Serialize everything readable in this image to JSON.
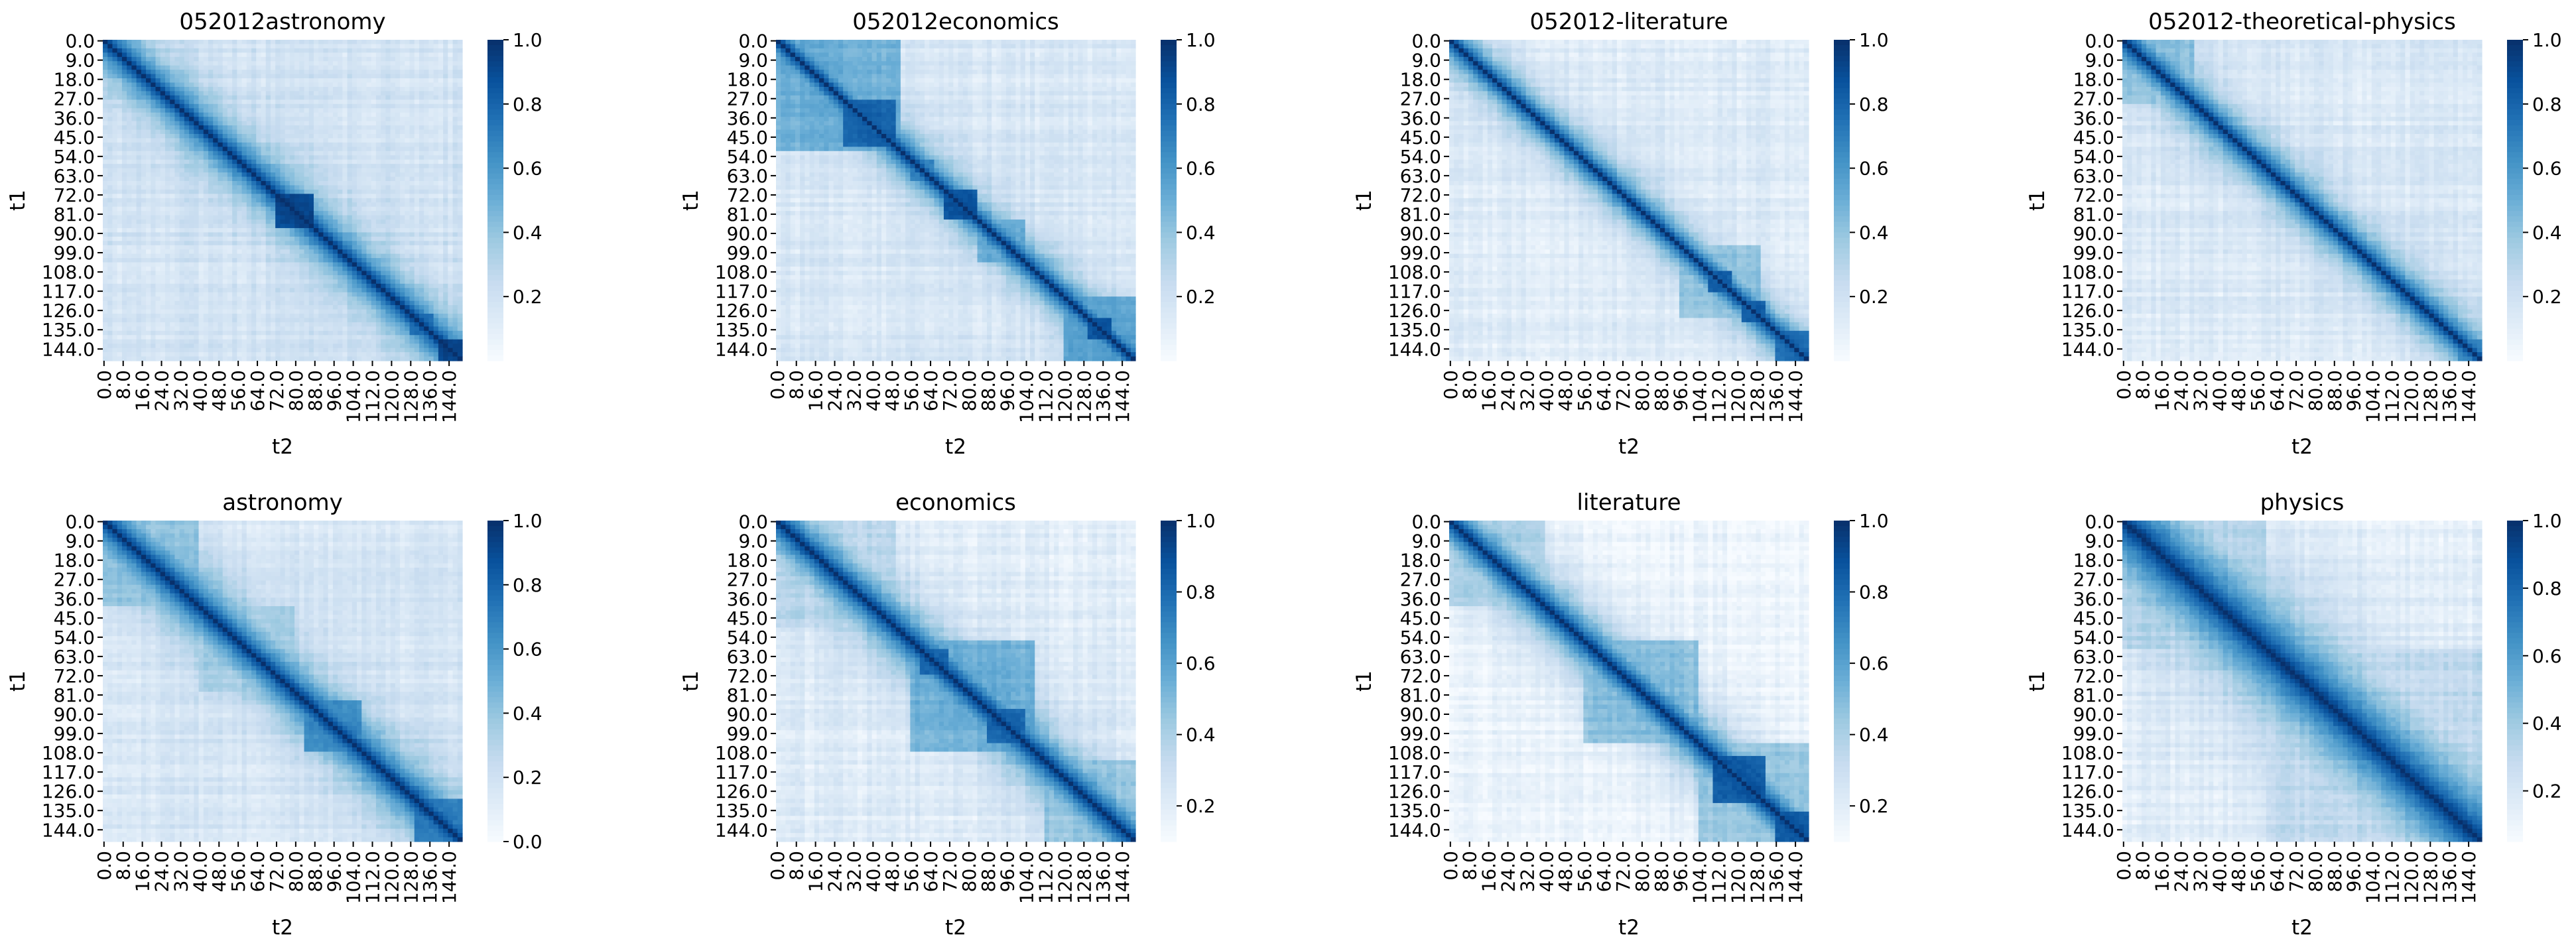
{
  "chart_data": [
    {
      "type": "heatmap",
      "title": "052012astronomy",
      "xlabel": "t2",
      "ylabel": "t1",
      "x_ticks": [
        "0.0",
        "8.0",
        "16.0",
        "24.0",
        "32.0",
        "40.0",
        "48.0",
        "56.0",
        "64.0",
        "72.0",
        "80.0",
        "88.0",
        "96.0",
        "104.0",
        "112.0",
        "120.0",
        "128.0",
        "136.0",
        "144.0"
      ],
      "y_ticks": [
        "0.0",
        "9.0",
        "18.0",
        "27.0",
        "36.0",
        "45.0",
        "54.0",
        "63.0",
        "72.0",
        "81.0",
        "90.0",
        "99.0",
        "108.0",
        "117.0",
        "126.0",
        "135.0",
        "144.0"
      ],
      "colorbar": {
        "min": 0.0,
        "max": 1.0,
        "ticks": [
          "0.2",
          "0.4",
          "0.6",
          "0.8",
          "1.0"
        ],
        "colormap": "Blues"
      },
      "matrix_size": 150,
      "structure": {
        "blocks": [
          [
            72,
            88,
            0.95
          ],
          [
            128,
            138,
            0.8
          ],
          [
            140,
            150,
            0.95
          ]
        ],
        "band_decay": 0.04,
        "background": 0.18
      }
    },
    {
      "type": "heatmap",
      "title": "052012economics",
      "xlabel": "t2",
      "ylabel": "t1",
      "x_ticks": [
        "0.0",
        "8.0",
        "16.0",
        "24.0",
        "32.0",
        "40.0",
        "48.0",
        "56.0",
        "64.0",
        "72.0",
        "80.0",
        "88.0",
        "96.0",
        "104.0",
        "112.0",
        "120.0",
        "128.0",
        "136.0",
        "144.0"
      ],
      "y_ticks": [
        "0.0",
        "9.0",
        "18.0",
        "27.0",
        "36.0",
        "45.0",
        "54.0",
        "63.0",
        "72.0",
        "81.0",
        "90.0",
        "99.0",
        "108.0",
        "117.0",
        "126.0",
        "135.0",
        "144.0"
      ],
      "colorbar": {
        "min": 0.0,
        "max": 1.0,
        "ticks": [
          "0.2",
          "0.4",
          "0.6",
          "0.8",
          "1.0"
        ],
        "colormap": "Blues"
      },
      "matrix_size": 150,
      "structure": {
        "blocks": [
          [
            0,
            52,
            0.55
          ],
          [
            28,
            50,
            0.85
          ],
          [
            56,
            66,
            0.7
          ],
          [
            70,
            84,
            0.9
          ],
          [
            84,
            104,
            0.55
          ],
          [
            120,
            150,
            0.6
          ],
          [
            130,
            140,
            0.9
          ]
        ],
        "band_decay": 0.05,
        "background": 0.15
      }
    },
    {
      "type": "heatmap",
      "title": "052012-literature",
      "xlabel": "t2",
      "ylabel": "t1",
      "x_ticks": [
        "0.0",
        "8.0",
        "16.0",
        "24.0",
        "32.0",
        "40.0",
        "48.0",
        "56.0",
        "64.0",
        "72.0",
        "80.0",
        "88.0",
        "96.0",
        "104.0",
        "112.0",
        "120.0",
        "128.0",
        "136.0",
        "144.0"
      ],
      "y_ticks": [
        "0.0",
        "9.0",
        "18.0",
        "27.0",
        "36.0",
        "45.0",
        "54.0",
        "63.0",
        "72.0",
        "81.0",
        "90.0",
        "99.0",
        "108.0",
        "117.0",
        "126.0",
        "135.0",
        "144.0"
      ],
      "colorbar": {
        "min": 0.0,
        "max": 1.0,
        "ticks": [
          "0.2",
          "0.4",
          "0.6",
          "0.8",
          "1.0"
        ],
        "colormap": "Blues"
      },
      "matrix_size": 150,
      "structure": {
        "blocks": [
          [
            96,
            130,
            0.45
          ],
          [
            108,
            118,
            0.85
          ],
          [
            122,
            132,
            0.85
          ],
          [
            136,
            150,
            0.8
          ]
        ],
        "band_decay": 0.05,
        "background": 0.12
      }
    },
    {
      "type": "heatmap",
      "title": "052012-theoretical-physics",
      "xlabel": "t2",
      "ylabel": "t1",
      "x_ticks": [
        "0.0",
        "8.0",
        "16.0",
        "24.0",
        "32.0",
        "40.0",
        "48.0",
        "56.0",
        "64.0",
        "72.0",
        "80.0",
        "88.0",
        "96.0",
        "104.0",
        "112.0",
        "120.0",
        "128.0",
        "136.0",
        "144.0"
      ],
      "y_ticks": [
        "0.0",
        "9.0",
        "18.0",
        "27.0",
        "36.0",
        "45.0",
        "54.0",
        "63.0",
        "72.0",
        "81.0",
        "90.0",
        "99.0",
        "108.0",
        "117.0",
        "126.0",
        "135.0",
        "144.0"
      ],
      "colorbar": {
        "min": 0.0,
        "max": 1.0,
        "ticks": [
          "0.2",
          "0.4",
          "0.6",
          "0.8",
          "1.0"
        ],
        "colormap": "Blues"
      },
      "matrix_size": 150,
      "structure": {
        "blocks": [
          [
            0,
            30,
            0.45
          ],
          [
            140,
            150,
            0.7
          ]
        ],
        "band_decay": 0.045,
        "background": 0.14
      }
    },
    {
      "type": "heatmap",
      "title": "astronomy",
      "xlabel": "t2",
      "ylabel": "t1",
      "x_ticks": [
        "0.0",
        "8.0",
        "16.0",
        "24.0",
        "32.0",
        "40.0",
        "48.0",
        "56.0",
        "64.0",
        "72.0",
        "80.0",
        "88.0",
        "96.0",
        "104.0",
        "112.0",
        "120.0",
        "128.0",
        "136.0",
        "144.0"
      ],
      "y_ticks": [
        "0.0",
        "9.0",
        "18.0",
        "27.0",
        "36.0",
        "45.0",
        "54.0",
        "63.0",
        "72.0",
        "81.0",
        "90.0",
        "99.0",
        "108.0",
        "117.0",
        "126.0",
        "135.0",
        "144.0"
      ],
      "colorbar": {
        "min": 0.0,
        "max": 1.0,
        "ticks": [
          "0.0",
          "0.2",
          "0.4",
          "0.6",
          "0.8",
          "1.0"
        ],
        "colormap": "Blues"
      },
      "matrix_size": 150,
      "structure": {
        "blocks": [
          [
            0,
            40,
            0.45
          ],
          [
            40,
            80,
            0.4
          ],
          [
            84,
            108,
            0.7
          ],
          [
            130,
            150,
            0.75
          ]
        ],
        "band_decay": 0.035,
        "background": 0.16
      }
    },
    {
      "type": "heatmap",
      "title": "economics",
      "xlabel": "t2",
      "ylabel": "t1",
      "x_ticks": [
        "0.0",
        "8.0",
        "16.0",
        "24.0",
        "32.0",
        "40.0",
        "48.0",
        "56.0",
        "64.0",
        "72.0",
        "80.0",
        "88.0",
        "96.0",
        "104.0",
        "112.0",
        "120.0",
        "128.0",
        "136.0",
        "144.0"
      ],
      "y_ticks": [
        "0.0",
        "9.0",
        "18.0",
        "27.0",
        "36.0",
        "45.0",
        "54.0",
        "63.0",
        "72.0",
        "81.0",
        "90.0",
        "99.0",
        "108.0",
        "117.0",
        "126.0",
        "135.0",
        "144.0"
      ],
      "colorbar": {
        "min": 0.1,
        "max": 1.0,
        "ticks": [
          "0.2",
          "0.4",
          "0.6",
          "0.8",
          "1.0"
        ],
        "colormap": "Blues"
      },
      "matrix_size": 150,
      "structure": {
        "blocks": [
          [
            0,
            50,
            0.4
          ],
          [
            56,
            108,
            0.6
          ],
          [
            60,
            72,
            0.85
          ],
          [
            88,
            104,
            0.85
          ],
          [
            112,
            150,
            0.5
          ]
        ],
        "band_decay": 0.035,
        "background": 0.2
      }
    },
    {
      "type": "heatmap",
      "title": "literature",
      "xlabel": "t2",
      "ylabel": "t1",
      "x_ticks": [
        "0.0",
        "8.0",
        "16.0",
        "24.0",
        "32.0",
        "40.0",
        "48.0",
        "56.0",
        "64.0",
        "72.0",
        "80.0",
        "88.0",
        "96.0",
        "104.0",
        "112.0",
        "120.0",
        "128.0",
        "136.0",
        "144.0"
      ],
      "y_ticks": [
        "0.0",
        "9.0",
        "18.0",
        "27.0",
        "36.0",
        "45.0",
        "54.0",
        "63.0",
        "72.0",
        "81.0",
        "90.0",
        "99.0",
        "108.0",
        "117.0",
        "126.0",
        "135.0",
        "144.0"
      ],
      "colorbar": {
        "min": 0.1,
        "max": 1.0,
        "ticks": [
          "0.2",
          "0.4",
          "0.6",
          "0.8",
          "1.0"
        ],
        "colormap": "Blues"
      },
      "matrix_size": 150,
      "structure": {
        "blocks": [
          [
            0,
            40,
            0.45
          ],
          [
            56,
            104,
            0.55
          ],
          [
            104,
            150,
            0.5
          ],
          [
            110,
            132,
            0.9
          ],
          [
            136,
            150,
            0.9
          ]
        ],
        "band_decay": 0.035,
        "background": 0.15
      }
    },
    {
      "type": "heatmap",
      "title": "physics",
      "xlabel": "t2",
      "ylabel": "t1",
      "x_ticks": [
        "0.0",
        "8.0",
        "16.0",
        "24.0",
        "32.0",
        "40.0",
        "48.0",
        "56.0",
        "64.0",
        "72.0",
        "80.0",
        "88.0",
        "96.0",
        "104.0",
        "112.0",
        "120.0",
        "128.0",
        "136.0",
        "144.0"
      ],
      "y_ticks": [
        "0.0",
        "9.0",
        "18.0",
        "27.0",
        "36.0",
        "45.0",
        "54.0",
        "63.0",
        "72.0",
        "81.0",
        "90.0",
        "99.0",
        "108.0",
        "117.0",
        "126.0",
        "135.0",
        "144.0"
      ],
      "colorbar": {
        "min": 0.05,
        "max": 1.0,
        "ticks": [
          "0.2",
          "0.4",
          "0.6",
          "0.8",
          "1.0"
        ],
        "colormap": "Blues"
      },
      "matrix_size": 150,
      "structure": {
        "blocks": [
          [
            0,
            60,
            0.4
          ],
          [
            60,
            150,
            0.35
          ]
        ],
        "band_decay": 0.02,
        "background": 0.15
      }
    }
  ],
  "colors": {
    "blues_low": "#f7fbff",
    "blues_mid": "#6baed6",
    "blues_high": "#08306b"
  }
}
